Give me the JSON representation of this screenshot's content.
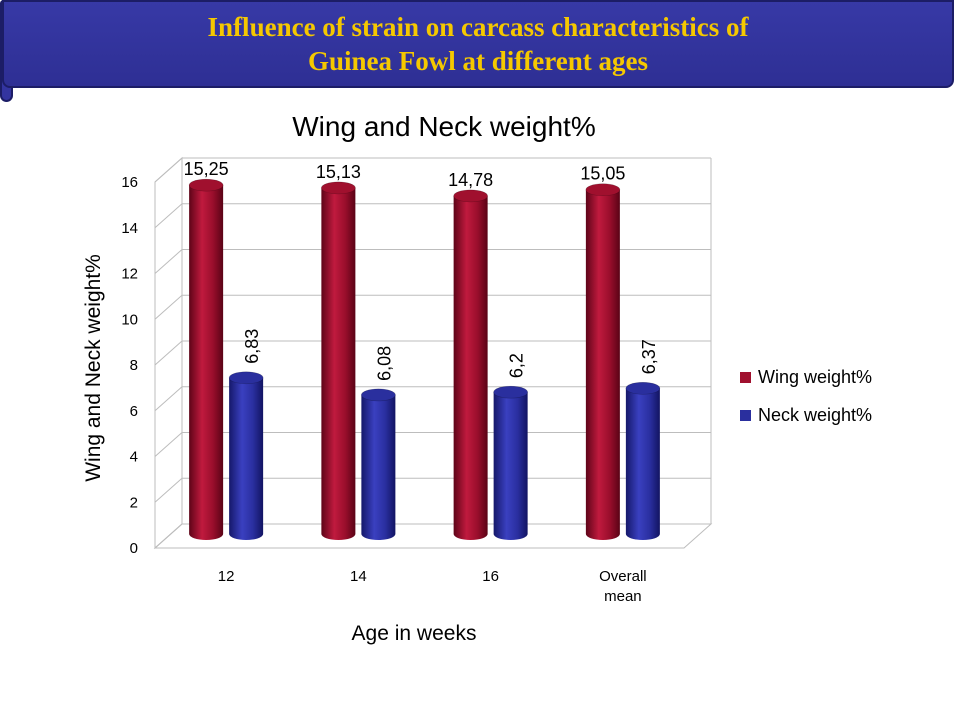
{
  "banner": {
    "line1": "Influence of strain on carcass characteristics of",
    "line2": "Guinea Fowl at different ages"
  },
  "chart_data": {
    "type": "bar",
    "title": "Wing and Neck weight%",
    "xlabel": "Age in weeks",
    "ylabel": "Wing and Neck weight%",
    "categories": [
      "12",
      "14",
      "16",
      "Overall mean"
    ],
    "ylim": [
      0,
      16
    ],
    "yticks": [
      "0",
      "2",
      "4",
      "6",
      "8",
      "10",
      "12",
      "14",
      "16"
    ],
    "grid": true,
    "legend_position": "right",
    "series": [
      {
        "name": "Wing weight%",
        "values": [
          15.25,
          15.13,
          14.78,
          15.05
        ],
        "labels": [
          "15,25",
          "15,13",
          "14,78",
          "15,05"
        ],
        "color": "#a0102e"
      },
      {
        "name": "Neck weight%",
        "values": [
          6.83,
          6.08,
          6.2,
          6.37
        ],
        "labels": [
          "6,83",
          "6,08",
          "6,2",
          "6,37"
        ],
        "color": "#2a2f9e"
      }
    ]
  }
}
